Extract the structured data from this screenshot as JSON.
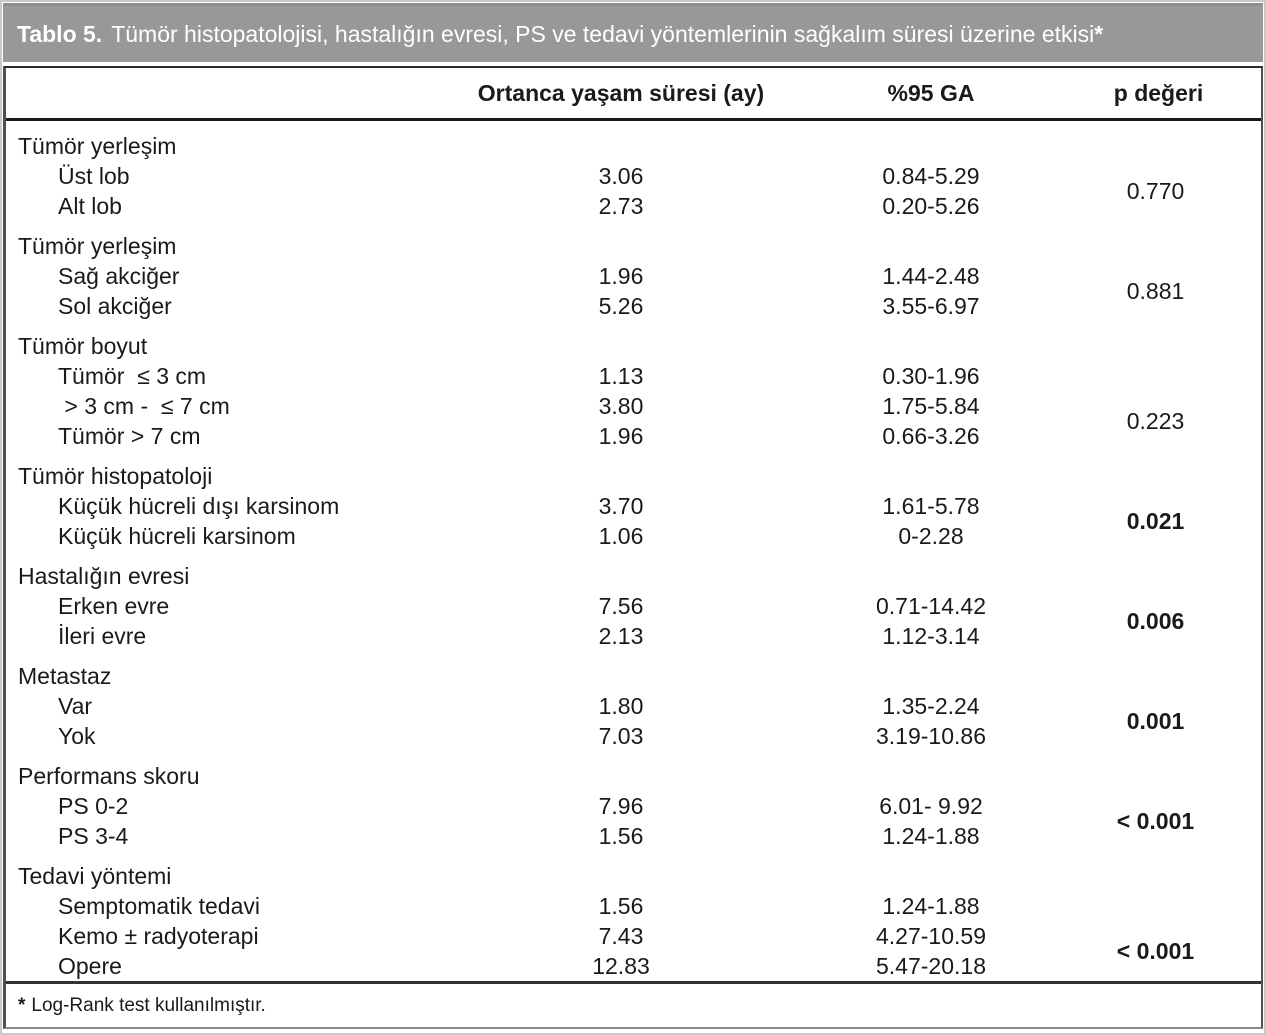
{
  "title": {
    "label": "Tablo 5.",
    "text": "Tümör histopatolojisi, hastalığın evresi, PS ve tedavi yöntemlerinin sağkalım süresi üzerine etkisi",
    "asterisk": "*"
  },
  "columns": {
    "median": "Ortanca yaşam süresi (ay)",
    "ci": "%95 GA",
    "p": "p değeri"
  },
  "sections": [
    {
      "group": "Tümör yerleşim",
      "rows": [
        {
          "label": "Üst lob",
          "median": "3.06",
          "ci": "0.84-5.29"
        },
        {
          "label": "Alt lob",
          "median": "2.73",
          "ci": "0.20-5.26"
        }
      ],
      "p": "0.770",
      "p_bold": false
    },
    {
      "group": "Tümör yerleşim",
      "rows": [
        {
          "label": "Sağ akciğer",
          "median": "1.96",
          "ci": "1.44-2.48"
        },
        {
          "label": "Sol akciğer",
          "median": "5.26",
          "ci": "3.55-6.97"
        }
      ],
      "p": "0.881",
      "p_bold": false
    },
    {
      "group": "Tümör boyut",
      "rows": [
        {
          "label": "Tümör  ≤ 3 cm",
          "median": "1.13",
          "ci": "0.30-1.96"
        },
        {
          "label": " > 3 cm -  ≤ 7 cm",
          "median": "3.80",
          "ci": "1.75-5.84"
        },
        {
          "label": "Tümör > 7 cm",
          "median": "1.96",
          "ci": "0.66-3.26"
        }
      ],
      "p": "0.223",
      "p_bold": false
    },
    {
      "group": "Tümör histopatoloji",
      "rows": [
        {
          "label": "Küçük hücreli dışı karsinom",
          "median": "3.70",
          "ci": "1.61-5.78"
        },
        {
          "label": "Küçük hücreli karsinom",
          "median": "1.06",
          "ci": "0-2.28"
        }
      ],
      "p": "0.021",
      "p_bold": true
    },
    {
      "group": "Hastalığın evresi",
      "rows": [
        {
          "label": "Erken evre",
          "median": "7.56",
          "ci": "0.71-14.42"
        },
        {
          "label": "İleri evre",
          "median": "2.13",
          "ci": "1.12-3.14"
        }
      ],
      "p": "0.006",
      "p_bold": true
    },
    {
      "group": "Metastaz",
      "rows": [
        {
          "label": "Var",
          "median": "1.80",
          "ci": "1.35-2.24"
        },
        {
          "label": "Yok",
          "median": "7.03",
          "ci": "3.19-10.86"
        }
      ],
      "p": "0.001",
      "p_bold": true
    },
    {
      "group": "Performans skoru",
      "rows": [
        {
          "label": "PS 0-2",
          "median": "7.96",
          "ci": "6.01- 9.92"
        },
        {
          "label": "PS 3-4",
          "median": "1.56",
          "ci": "1.24-1.88"
        }
      ],
      "p": "< 0.001",
      "p_bold": true
    },
    {
      "group": "Tedavi yöntemi",
      "rows": [
        {
          "label": "Semptomatik tedavi",
          "median": "1.56",
          "ci": "1.24-1.88"
        },
        {
          "label": "Kemo ± radyoterapi",
          "median": "7.43",
          "ci": "4.27-10.59"
        },
        {
          "label": "Opere",
          "median": "12.83",
          "ci": "5.47-20.18"
        }
      ],
      "p": "< 0.001",
      "p_bold": true
    }
  ],
  "footnote": {
    "marker": "*",
    "text": "Log-Rank test kullanılmıştır."
  },
  "colors": {
    "header_band": "#98989b",
    "header_text": "#ffffff",
    "body_text": "#1a1a1a",
    "rule": "#1a1a1a",
    "outer_border": "#c9c9cb"
  }
}
